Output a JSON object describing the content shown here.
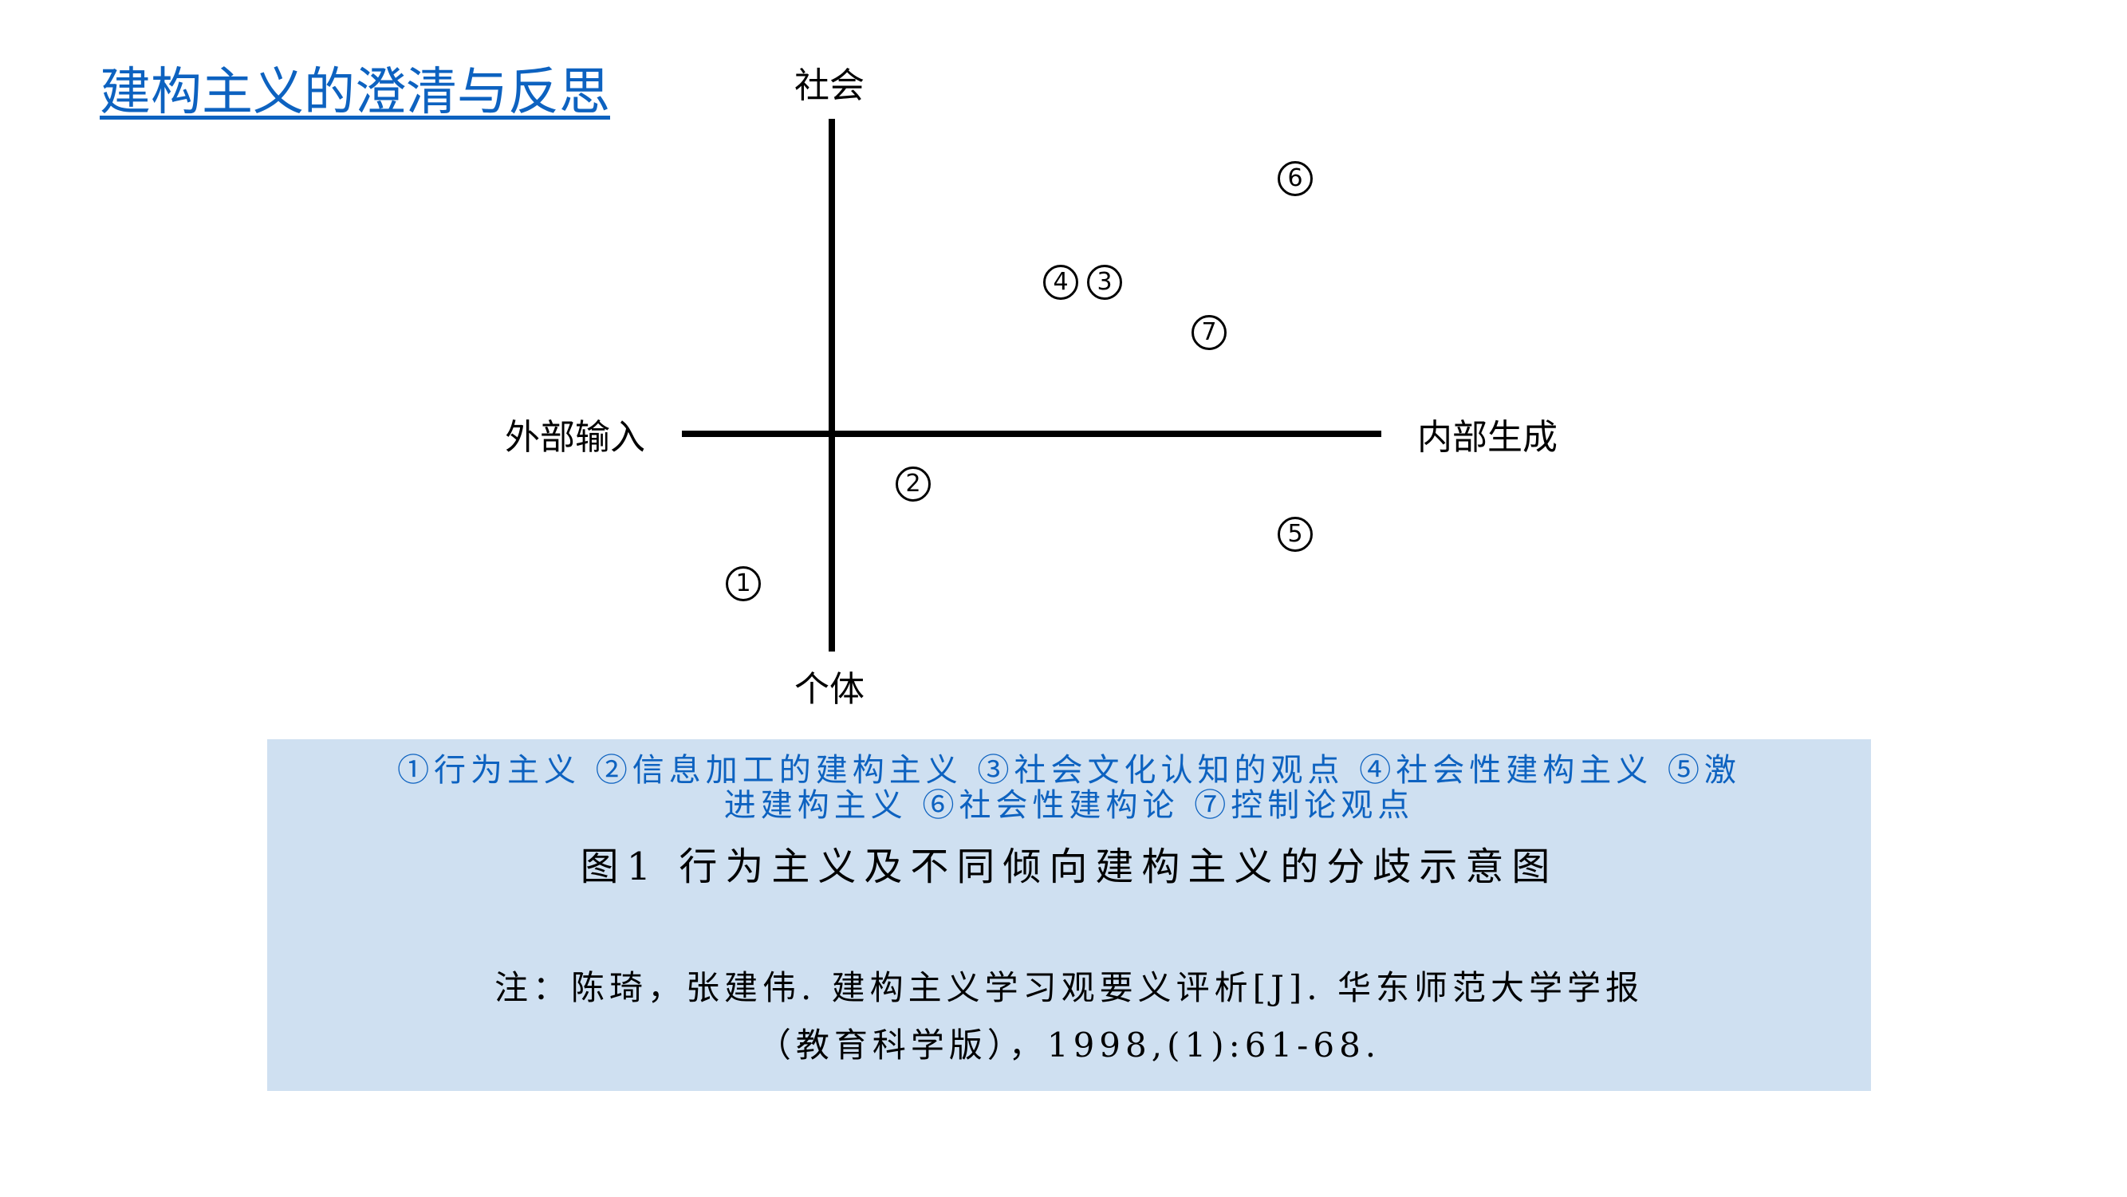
{
  "title": "建构主义的澄清与反思",
  "diagram": {
    "axis_top": "社会",
    "axis_bottom": "个体",
    "axis_left": "外部输入",
    "axis_right": "内部生成",
    "markers": [
      "1",
      "2",
      "3",
      "4",
      "5",
      "6",
      "7"
    ]
  },
  "caption": {
    "legend_line1": "①行为主义 ②信息加工的建构主义 ③社会文化认知的观点 ④社会性建构主义 ⑤激",
    "legend_line2": "进建构主义 ⑥社会性建构论 ⑦控制论观点",
    "figure_title": "图1 行为主义及不同倾向建构主义的分歧示意图",
    "note_line1": "注：陈琦，张建伟. 建构主义学习观要义评析[J]. 华东师范大学学报",
    "note_line2": "（教育科学版），1998,(1):61-68."
  },
  "colors": {
    "title": "#0d62c0",
    "caption_bg": "#cfe0f1",
    "legend": "#0d62c0"
  }
}
